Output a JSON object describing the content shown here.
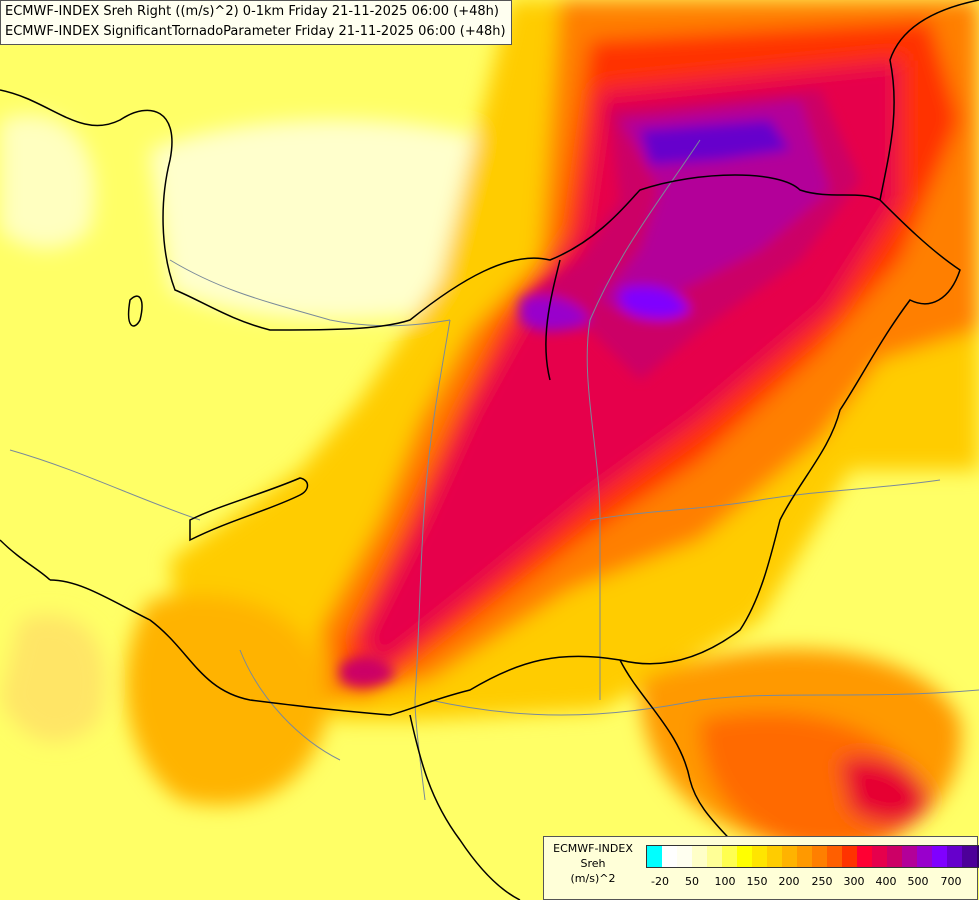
{
  "header": {
    "line1": "ECMWF-INDEX Sreh Right ((m/s)^2) 0-1km Friday 21-11-2025 06:00 (+48h)",
    "line2": "ECMWF-INDEX SignificantTornadoParameter Friday 21-11-2025 06:00 (+48h)"
  },
  "legend": {
    "title_lines": [
      "ECMWF-INDEX",
      "Sreh",
      "(m/s)^2"
    ],
    "colors": [
      "#00ffff",
      "#ffffff",
      "#fffff0",
      "#ffffc8",
      "#ffff96",
      "#ffff50",
      "#ffff00",
      "#ffe500",
      "#ffcc00",
      "#ffb300",
      "#ff9900",
      "#ff7f00",
      "#ff5f00",
      "#ff3300",
      "#ff0033",
      "#e6004c",
      "#cc0066",
      "#b30099",
      "#9900cc",
      "#8000ff",
      "#6600cc",
      "#4d0099",
      "#330066"
    ],
    "tick_labels": [
      "-20",
      "50",
      "100",
      "150",
      "200",
      "250",
      "300",
      "400",
      "500",
      "700"
    ]
  }
}
